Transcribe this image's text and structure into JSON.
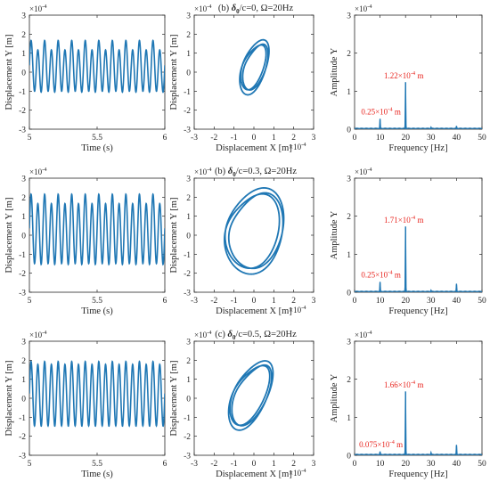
{
  "figure": {
    "row_titles": [
      {
        "pre": "(b) ",
        "delta": "δ",
        "sub": "0",
        "post": "/c=0, Ω=20Hz"
      },
      {
        "pre": "(b) ",
        "delta": "δ",
        "sub": "0",
        "post": "/c=0.3, Ω=20Hz"
      },
      {
        "pre": "(c) ",
        "delta": "δ",
        "sub": "0",
        "post": "/c=0.5, Ω=20Hz"
      }
    ],
    "series_color": "#1f77b4",
    "peak_label_color": "#e8251f"
  },
  "chart_data": [
    {
      "id": "r1-time",
      "type": "line",
      "xlabel": "Time (s)",
      "ylabel": "Displacement Y [m]",
      "exponent": "×10",
      "exponent_power": "-4",
      "xlim": [
        5,
        6
      ],
      "ylim": [
        -3,
        3
      ],
      "xticks": [
        5,
        5.5,
        6
      ],
      "yticks": [
        -3,
        -2,
        -1,
        0,
        1,
        2,
        3
      ],
      "signal": {
        "frequency_hz": 20,
        "amplitude": 1.22,
        "sub_frequency_hz": 10,
        "sub_amplitude": 0.25,
        "offset": 0.2
      }
    },
    {
      "id": "r1-orbit",
      "type": "line",
      "xlabel": "Displacement X [m]",
      "ylabel": "Displacement Y [m]",
      "exponent": "×10",
      "exponent_power": "-4",
      "x_exponent": "×10",
      "x_exponent_power": "-4",
      "xlim": [
        -3,
        3
      ],
      "ylim": [
        -3,
        3
      ],
      "xticks": [
        -3,
        -2,
        -1,
        0,
        1,
        2,
        3
      ],
      "yticks": [
        -3,
        -2,
        -1,
        0,
        1,
        2,
        3
      ],
      "orbit": {
        "cx": 0,
        "cy": 0.25,
        "rx": 0.55,
        "ry": 1.3,
        "tilt": -0.25,
        "loops": 3,
        "spread": 0.14
      }
    },
    {
      "id": "r1-spectrum",
      "type": "line",
      "xlabel": "Frequency [Hz]",
      "ylabel": "Amplitude Y",
      "exponent": "×10",
      "exponent_power": "-4",
      "xlim": [
        0,
        50
      ],
      "ylim": [
        0,
        3
      ],
      "xticks": [
        0,
        10,
        20,
        30,
        40,
        50
      ],
      "yticks": [
        0,
        1,
        2,
        3
      ],
      "peaks": [
        {
          "x": 10,
          "y": 0.25
        },
        {
          "x": 20,
          "y": 1.22
        },
        {
          "x": 30,
          "y": 0.03
        },
        {
          "x": 40,
          "y": 0.06
        }
      ],
      "annotations": [
        {
          "x": 20,
          "y": 1.22,
          "mantissa": "1.22",
          "power": "-4",
          "unit": " m"
        },
        {
          "x": 10,
          "y": 0.25,
          "mantissa": "0.25",
          "power": "-4",
          "unit": " m"
        }
      ]
    },
    {
      "id": "r2-time",
      "type": "line",
      "xlabel": "Time (s)",
      "ylabel": "Displacement Y [m]",
      "exponent": "×10",
      "exponent_power": "-4",
      "xlim": [
        5,
        6
      ],
      "ylim": [
        -3,
        3
      ],
      "xticks": [
        5,
        5.5,
        6
      ],
      "yticks": [
        -3,
        -2,
        -1,
        0,
        1,
        2,
        3
      ],
      "signal": {
        "frequency_hz": 20,
        "amplitude": 1.71,
        "sub_frequency_hz": 10,
        "sub_amplitude": 0.25,
        "offset": 0.2
      }
    },
    {
      "id": "r2-orbit",
      "type": "line",
      "xlabel": "Displacement X [m]",
      "ylabel": "Displacement Y [m]",
      "exponent": "×10",
      "exponent_power": "-4",
      "x_exponent": "×10",
      "x_exponent_power": "-4",
      "xlim": [
        -3,
        3
      ],
      "ylim": [
        -3,
        3
      ],
      "xticks": [
        -3,
        -2,
        -1,
        0,
        1,
        2,
        3
      ],
      "yticks": [
        -3,
        -2,
        -1,
        0,
        1,
        2,
        3
      ],
      "orbit": {
        "cx": 0,
        "cy": 0.2,
        "rx": 1.35,
        "ry": 2.05,
        "tilt": -0.1,
        "loops": 3,
        "spread": 0.1
      }
    },
    {
      "id": "r2-spectrum",
      "type": "line",
      "xlabel": "Frequency [Hz]",
      "ylabel": "Amplitude Y",
      "exponent": "×10",
      "exponent_power": "-4",
      "xlim": [
        0,
        50
      ],
      "ylim": [
        0,
        3
      ],
      "xticks": [
        0,
        10,
        20,
        30,
        40,
        50
      ],
      "yticks": [
        0,
        1,
        2,
        3
      ],
      "peaks": [
        {
          "x": 10,
          "y": 0.25
        },
        {
          "x": 20,
          "y": 1.71
        },
        {
          "x": 30,
          "y": 0.03
        },
        {
          "x": 40,
          "y": 0.2
        }
      ],
      "annotations": [
        {
          "x": 20,
          "y": 1.71,
          "mantissa": "1.71",
          "power": "-4",
          "unit": " m"
        },
        {
          "x": 10,
          "y": 0.25,
          "mantissa": "0.25",
          "power": "-4",
          "unit": " m"
        }
      ]
    },
    {
      "id": "r3-time",
      "type": "line",
      "xlabel": "Time (s)",
      "ylabel": "Displacement Y [m]",
      "exponent": "×10",
      "exponent_power": "-4",
      "xlim": [
        5,
        6
      ],
      "ylim": [
        -3,
        3
      ],
      "xticks": [
        5,
        5.5,
        6
      ],
      "yticks": [
        -3,
        -2,
        -1,
        0,
        1,
        2,
        3
      ],
      "signal": {
        "frequency_hz": 20,
        "amplitude": 1.66,
        "sub_frequency_hz": 10,
        "sub_amplitude": 0.075,
        "offset": 0.2
      }
    },
    {
      "id": "r3-orbit",
      "type": "line",
      "xlabel": "Displacement X [m]",
      "ylabel": "Displacement Y [m]",
      "exponent": "×10",
      "exponent_power": "-4",
      "x_exponent": "×10",
      "x_exponent_power": "-4",
      "xlim": [
        -3,
        3
      ],
      "ylim": [
        -3,
        3
      ],
      "xticks": [
        -3,
        -2,
        -1,
        0,
        1,
        2,
        3
      ],
      "yticks": [
        -3,
        -2,
        -1,
        0,
        1,
        2,
        3
      ],
      "orbit": {
        "cx": -0.2,
        "cy": 0.15,
        "rx": 0.8,
        "ry": 1.75,
        "tilt": -0.35,
        "loops": 3,
        "spread": 0.1
      }
    },
    {
      "id": "r3-spectrum",
      "type": "line",
      "xlabel": "Frequency [Hz]",
      "ylabel": "Amplitude Y",
      "exponent": "×10",
      "exponent_power": "-4",
      "xlim": [
        0,
        50
      ],
      "ylim": [
        0,
        3
      ],
      "xticks": [
        0,
        10,
        20,
        30,
        40,
        50
      ],
      "yticks": [
        0,
        1,
        2,
        3
      ],
      "peaks": [
        {
          "x": 10,
          "y": 0.075
        },
        {
          "x": 20,
          "y": 1.66
        },
        {
          "x": 30,
          "y": 0.05
        },
        {
          "x": 40,
          "y": 0.25
        }
      ],
      "annotations": [
        {
          "x": 20,
          "y": 1.66,
          "mantissa": "1.66",
          "power": "-4",
          "unit": " m"
        },
        {
          "x": 10,
          "y": 0.075,
          "mantissa": "0.075",
          "power": "-4",
          "unit": " m"
        }
      ]
    }
  ]
}
